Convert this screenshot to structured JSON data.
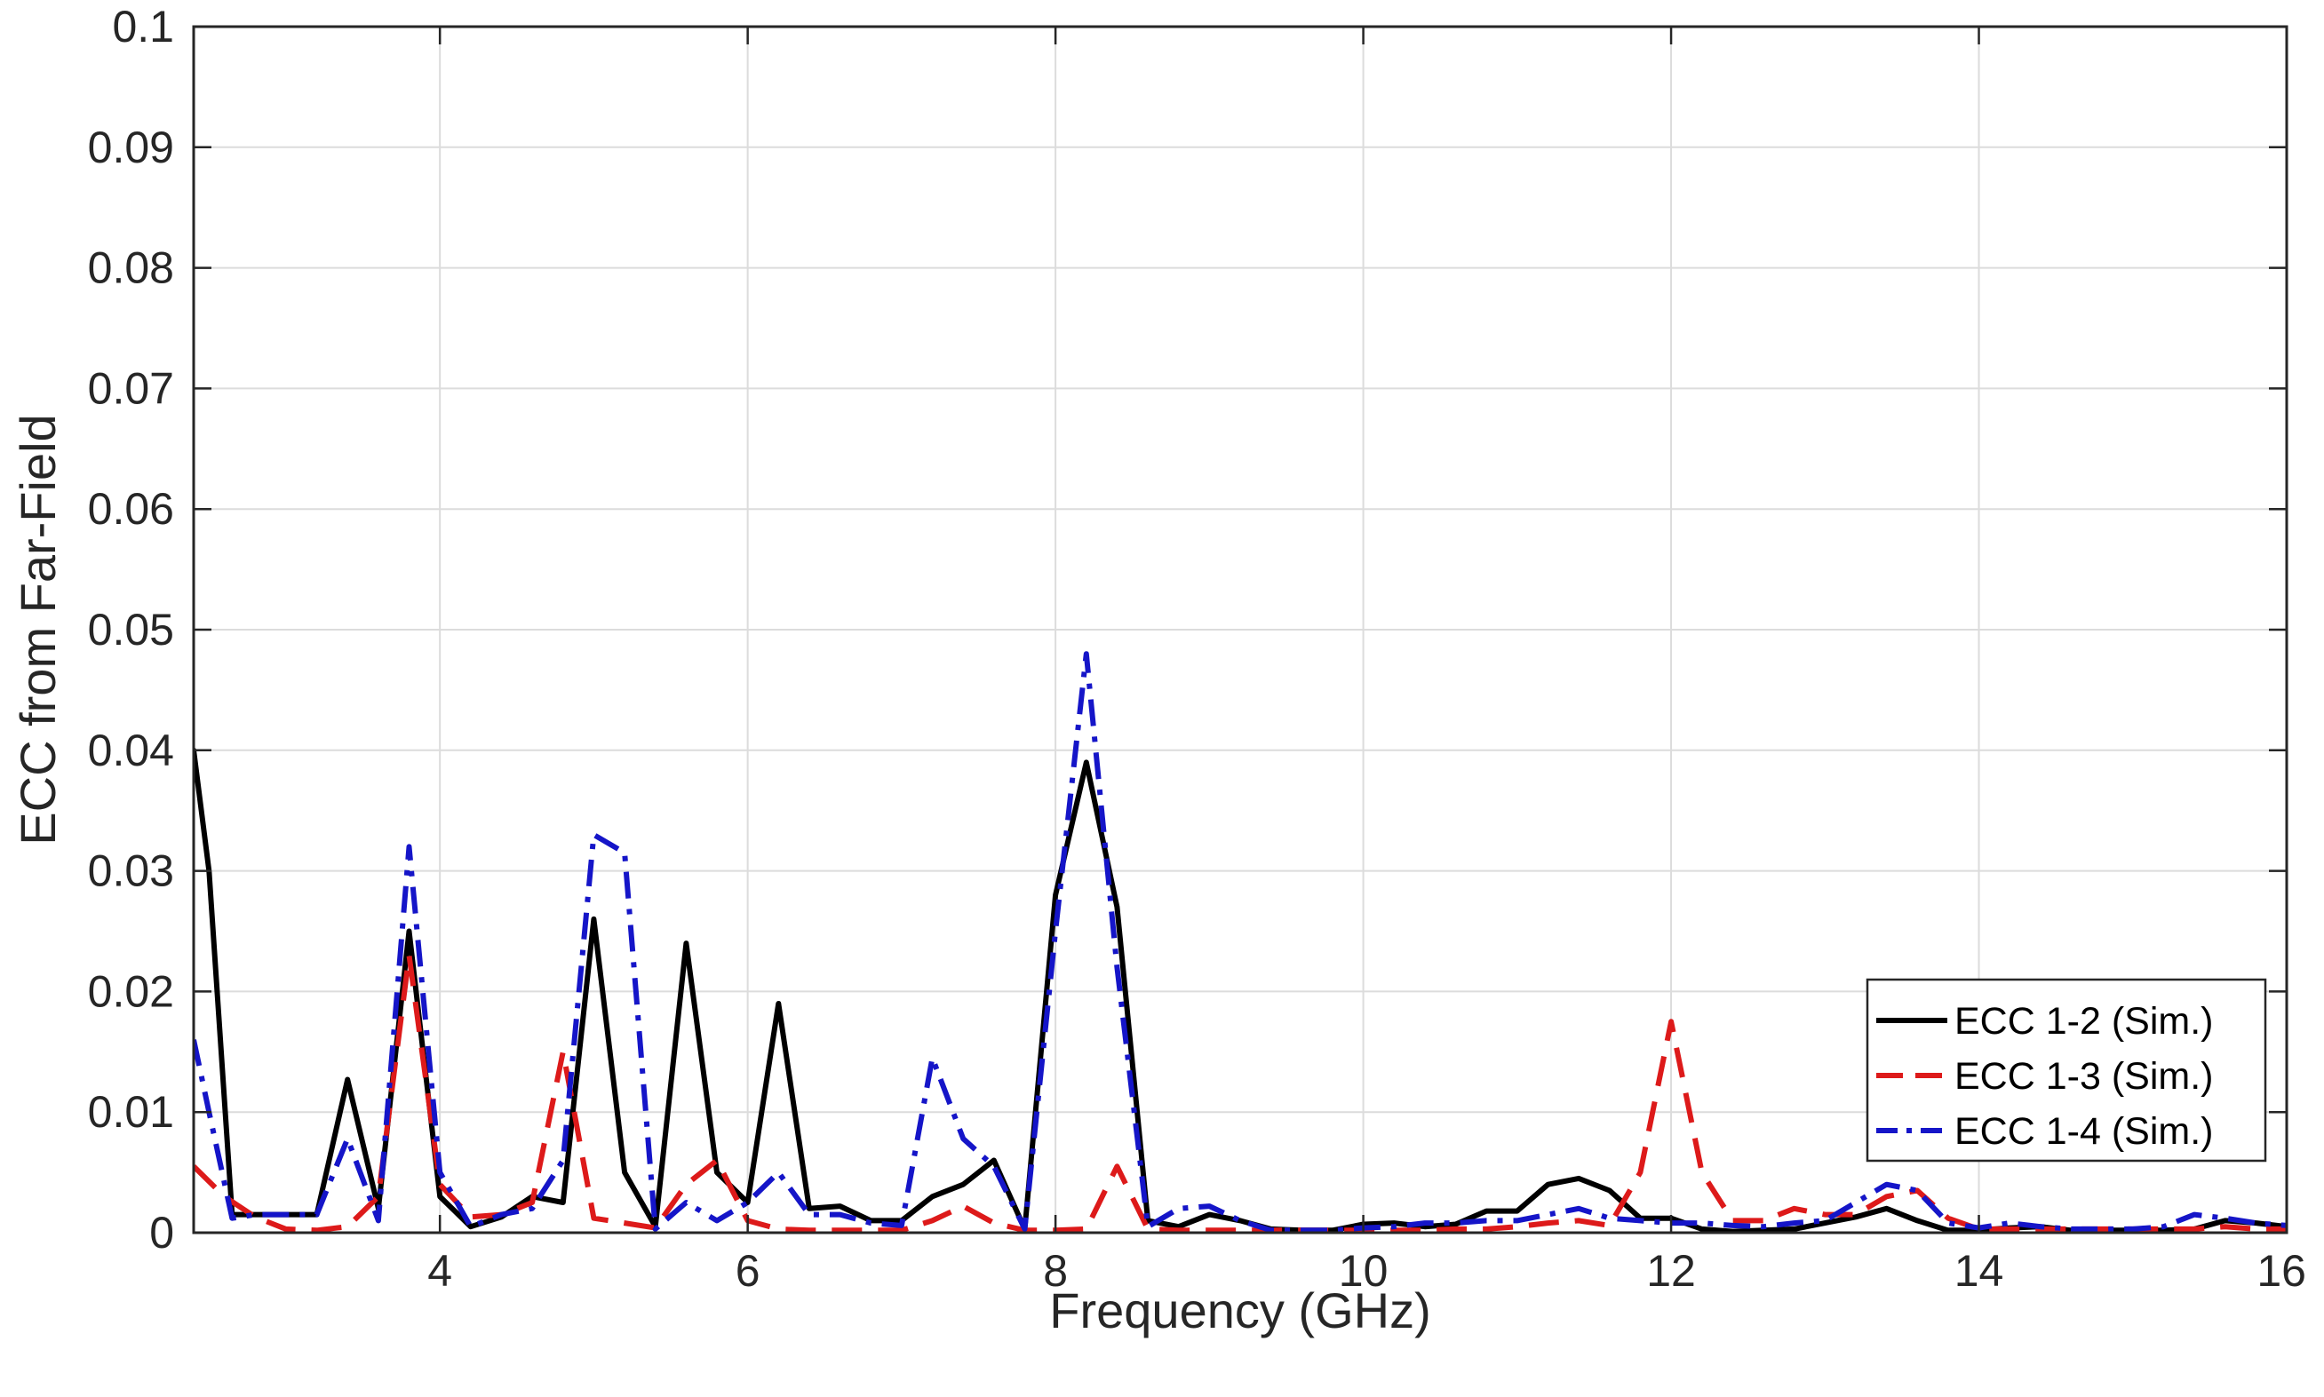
{
  "chart_data": {
    "type": "line",
    "title": "",
    "xlabel": "Frequency (GHz)",
    "ylabel": "ECC from Far-Field",
    "xlim": [
      2.4,
      16
    ],
    "ylim": [
      0,
      0.1
    ],
    "xticks": [
      4,
      6,
      8,
      10,
      12,
      14,
      16
    ],
    "xtick_labels": [
      "4",
      "6",
      "8",
      "10",
      "12",
      "14",
      "16"
    ],
    "yticks": [
      0,
      0.01,
      0.02,
      0.03,
      0.04,
      0.05,
      0.06,
      0.07,
      0.08,
      0.09,
      0.1
    ],
    "ytick_labels": [
      "0",
      "0.01",
      "0.02",
      "0.03",
      "0.04",
      "0.05",
      "0.06",
      "0.07",
      "0.08",
      "0.09",
      "0.1"
    ],
    "grid": true,
    "legend_position": "bottom-right",
    "series": [
      {
        "name": "ECC 1-2 (Sim.)",
        "color": "#000000",
        "style": "solid",
        "x": [
          2.4,
          2.5,
          2.65,
          2.8,
          3.0,
          3.2,
          3.4,
          3.6,
          3.8,
          4.0,
          4.2,
          4.4,
          4.6,
          4.8,
          5.0,
          5.2,
          5.4,
          5.6,
          5.8,
          6.0,
          6.2,
          6.4,
          6.6,
          6.8,
          7.0,
          7.2,
          7.4,
          7.6,
          7.8,
          8.0,
          8.2,
          8.4,
          8.6,
          8.8,
          9.0,
          9.2,
          9.4,
          9.6,
          9.8,
          10.0,
          10.2,
          10.4,
          10.6,
          10.8,
          11.0,
          11.2,
          11.4,
          11.6,
          11.8,
          12.0,
          12.2,
          12.4,
          12.6,
          12.8,
          13.0,
          13.2,
          13.4,
          13.6,
          13.8,
          14.0,
          14.2,
          14.4,
          14.6,
          14.8,
          15.0,
          15.2,
          15.4,
          15.6,
          15.8,
          16.0
        ],
        "y": [
          0.04,
          0.03,
          0.0015,
          0.0015,
          0.0015,
          0.0015,
          0.0127,
          0.002,
          0.025,
          0.003,
          0.0005,
          0.0013,
          0.003,
          0.0025,
          0.026,
          0.005,
          0.0005,
          0.024,
          0.005,
          0.0025,
          0.019,
          0.002,
          0.0022,
          0.001,
          0.001,
          0.003,
          0.004,
          0.006,
          0.0003,
          0.028,
          0.039,
          0.027,
          0.001,
          0.0005,
          0.0015,
          0.001,
          0.0003,
          0.0002,
          0.0002,
          0.0007,
          0.0008,
          0.0005,
          0.0007,
          0.0018,
          0.0018,
          0.004,
          0.0045,
          0.0035,
          0.0012,
          0.0012,
          0.0003,
          0.0001,
          0.0002,
          0.0003,
          0.0008,
          0.0013,
          0.002,
          0.001,
          0.0002,
          0.0002,
          0.0004,
          0.0005,
          0.0002,
          0.0002,
          0.0002,
          0.0002,
          0.0003,
          0.001,
          0.0008,
          0.0005
        ]
      },
      {
        "name": "ECC 1-3 (Sim.)",
        "color": "#dd1a1a",
        "style": "dashed",
        "x": [
          2.4,
          2.6,
          2.8,
          3.0,
          3.2,
          3.4,
          3.6,
          3.8,
          4.0,
          4.2,
          4.4,
          4.6,
          4.8,
          5.0,
          5.2,
          5.4,
          5.6,
          5.8,
          6.0,
          6.2,
          6.4,
          6.6,
          6.8,
          7.0,
          7.2,
          7.4,
          7.6,
          7.8,
          8.0,
          8.2,
          8.4,
          8.6,
          8.8,
          9.0,
          9.2,
          9.4,
          9.6,
          9.8,
          10.0,
          10.2,
          10.4,
          10.6,
          10.8,
          11.0,
          11.2,
          11.4,
          11.6,
          11.8,
          12.0,
          12.2,
          12.4,
          12.6,
          12.8,
          13.0,
          13.2,
          13.4,
          13.6,
          13.8,
          14.0,
          14.2,
          14.4,
          14.6,
          14.8,
          15.0,
          15.2,
          15.4,
          15.6,
          15.8,
          16.0
        ],
        "y": [
          0.0055,
          0.003,
          0.0013,
          0.0003,
          0.0002,
          0.0005,
          0.003,
          0.023,
          0.004,
          0.0013,
          0.0015,
          0.0025,
          0.015,
          0.0012,
          0.0008,
          0.0004,
          0.004,
          0.006,
          0.001,
          0.0003,
          0.0002,
          0.0002,
          0.0002,
          0.0002,
          0.001,
          0.0022,
          0.0008,
          0.0002,
          0.0002,
          0.0003,
          0.0055,
          0.0003,
          0.0002,
          0.0002,
          0.0002,
          0.0002,
          0.0002,
          0.0002,
          0.0002,
          0.0002,
          0.0002,
          0.0003,
          0.0003,
          0.0005,
          0.0008,
          0.001,
          0.0006,
          0.005,
          0.0175,
          0.005,
          0.001,
          0.001,
          0.002,
          0.0015,
          0.0015,
          0.003,
          0.0035,
          0.0012,
          0.0003,
          0.0003,
          0.0003,
          0.0003,
          0.0003,
          0.0003,
          0.0003,
          0.0003,
          0.0005,
          0.0003,
          0.0003
        ]
      },
      {
        "name": "ECC 1-4 (Sim.)",
        "color": "#1515c8",
        "style": "dashdot",
        "x": [
          2.4,
          2.5,
          2.65,
          2.8,
          3.0,
          3.2,
          3.4,
          3.6,
          3.8,
          4.0,
          4.2,
          4.4,
          4.6,
          4.8,
          5.0,
          5.2,
          5.4,
          5.6,
          5.8,
          6.0,
          6.2,
          6.4,
          6.6,
          6.8,
          7.0,
          7.2,
          7.4,
          7.6,
          7.8,
          8.0,
          8.2,
          8.4,
          8.6,
          8.8,
          9.0,
          9.2,
          9.4,
          9.6,
          9.8,
          10.0,
          10.2,
          10.4,
          10.6,
          10.8,
          11.0,
          11.2,
          11.4,
          11.6,
          11.8,
          12.0,
          12.2,
          12.4,
          12.6,
          12.8,
          13.0,
          13.2,
          13.4,
          13.6,
          13.8,
          14.0,
          14.2,
          14.4,
          14.6,
          14.8,
          15.0,
          15.2,
          15.4,
          15.6,
          15.8,
          16.0
        ],
        "y": [
          0.016,
          0.01,
          0.0012,
          0.0015,
          0.0015,
          0.0015,
          0.0078,
          0.001,
          0.032,
          0.005,
          0.0005,
          0.0015,
          0.002,
          0.006,
          0.033,
          0.0315,
          0.0003,
          0.0025,
          0.001,
          0.0025,
          0.005,
          0.0015,
          0.0015,
          0.0008,
          0.0006,
          0.0145,
          0.0078,
          0.0055,
          0.0003,
          0.025,
          0.048,
          0.022,
          0.0005,
          0.002,
          0.0022,
          0.001,
          0.0002,
          0.0002,
          0.0002,
          0.0004,
          0.0005,
          0.0008,
          0.0008,
          0.001,
          0.001,
          0.0015,
          0.002,
          0.0012,
          0.001,
          0.0008,
          0.0008,
          0.0006,
          0.0005,
          0.0008,
          0.001,
          0.0025,
          0.004,
          0.0035,
          0.0008,
          0.0004,
          0.0008,
          0.0005,
          0.0003,
          0.0003,
          0.0003,
          0.0005,
          0.0015,
          0.0012,
          0.0008,
          0.0006
        ]
      }
    ]
  }
}
